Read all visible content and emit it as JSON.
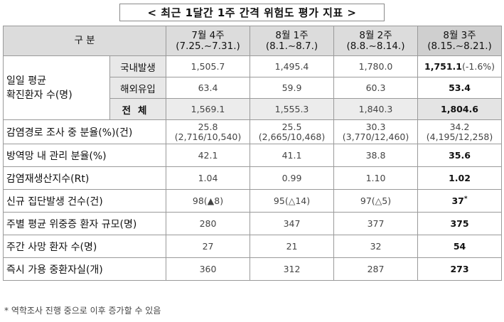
{
  "title": "< 최근 1달간 1주 간격 위험도 평가 지표 >",
  "header": {
    "label": "구  분",
    "cols": [
      {
        "line1": "7월 4주",
        "line2": "(7.25.~7.31.)"
      },
      {
        "line1": "8월 1주",
        "line2": "(8.1.~8.7.)"
      },
      {
        "line1": "8월 2주",
        "line2": "(8.8.~8.14.)"
      },
      {
        "line1": "8월 3주",
        "line2": "(8.15.~8.21.)"
      }
    ]
  },
  "group1": {
    "label_line1": "일일 평균",
    "label_line2": "확진환자 수(명)",
    "rows": [
      {
        "sub": "국내발생",
        "v": [
          "1,505.7",
          "1,495.4",
          "1,780.0"
        ],
        "last": "1,751.1",
        "last_note": "(-1.6%)"
      },
      {
        "sub": "해외유입",
        "v": [
          "63.4",
          "59.9",
          "60.3"
        ],
        "last": "53.4",
        "last_note": ""
      },
      {
        "sub": "전체",
        "v": [
          "1,569.1",
          "1,555.3",
          "1,840.3"
        ],
        "last": "1,804.6",
        "last_note": ""
      }
    ]
  },
  "rows": [
    {
      "label": "감염경로 조사 중 분율(%)(건)",
      "v": [
        [
          "25.8",
          "(2,716/10,540)"
        ],
        [
          "25.5",
          "(2,665/10,468)"
        ],
        [
          "30.3",
          "(3,770/12,460)"
        ],
        [
          "34.2",
          "(4,195/12,258)"
        ]
      ]
    },
    {
      "label": "방역망 내 관리 분율(%)",
      "v": [
        "42.1",
        "41.1",
        "38.8"
      ],
      "last": "35.6"
    },
    {
      "label": "감염재생산지수(Rt)",
      "v": [
        "1.04",
        "0.99",
        "1.10"
      ],
      "last": "1.02"
    },
    {
      "label": "신규 집단발생 건수(건)",
      "v": [
        "98(▲8)",
        "95(△14)",
        "97(△5)"
      ],
      "last": "37",
      "last_sup": "*"
    },
    {
      "label": "주별 평균 위중증 환자 규모(명)",
      "v": [
        "280",
        "347",
        "377"
      ],
      "last": "375"
    },
    {
      "label": "주간 사망 환자 수(명)",
      "v": [
        "27",
        "21",
        "32"
      ],
      "last": "54"
    },
    {
      "label": "즉시 가용 중환자실(개)",
      "v": [
        "360",
        "312",
        "287"
      ],
      "last": "273"
    }
  ],
  "footnote": "* 역학조사 진행 중으로 이후 증가할 수 있음"
}
